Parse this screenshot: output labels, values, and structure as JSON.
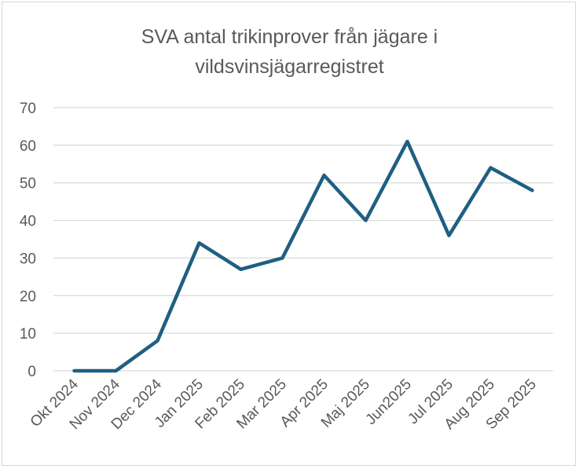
{
  "chart_data": {
    "type": "line",
    "title_lines": [
      "SVA antal trikinprover från jägare i",
      "vildsvinsjägarregistret"
    ],
    "categories": [
      "Okt 2024",
      "Nov 2024",
      "Dec 2024",
      "Jan 2025",
      "Feb 2025",
      "Mar 2025",
      "Apr 2025",
      "Maj 2025",
      "Jun2025",
      "Jul 2025",
      "Aug 2025",
      "Sep 2025"
    ],
    "series": [
      {
        "values": [
          0,
          0,
          8,
          34,
          27,
          30,
          52,
          40,
          61,
          36,
          54,
          48
        ]
      }
    ],
    "ylim": [
      0,
      70
    ],
    "yticks": [
      0,
      10,
      20,
      30,
      40,
      50,
      60,
      70
    ],
    "grid": true,
    "legend": "none",
    "colors": {
      "line": "#1f5f82",
      "grid": "#d9d9d9",
      "text": "#595959"
    }
  }
}
